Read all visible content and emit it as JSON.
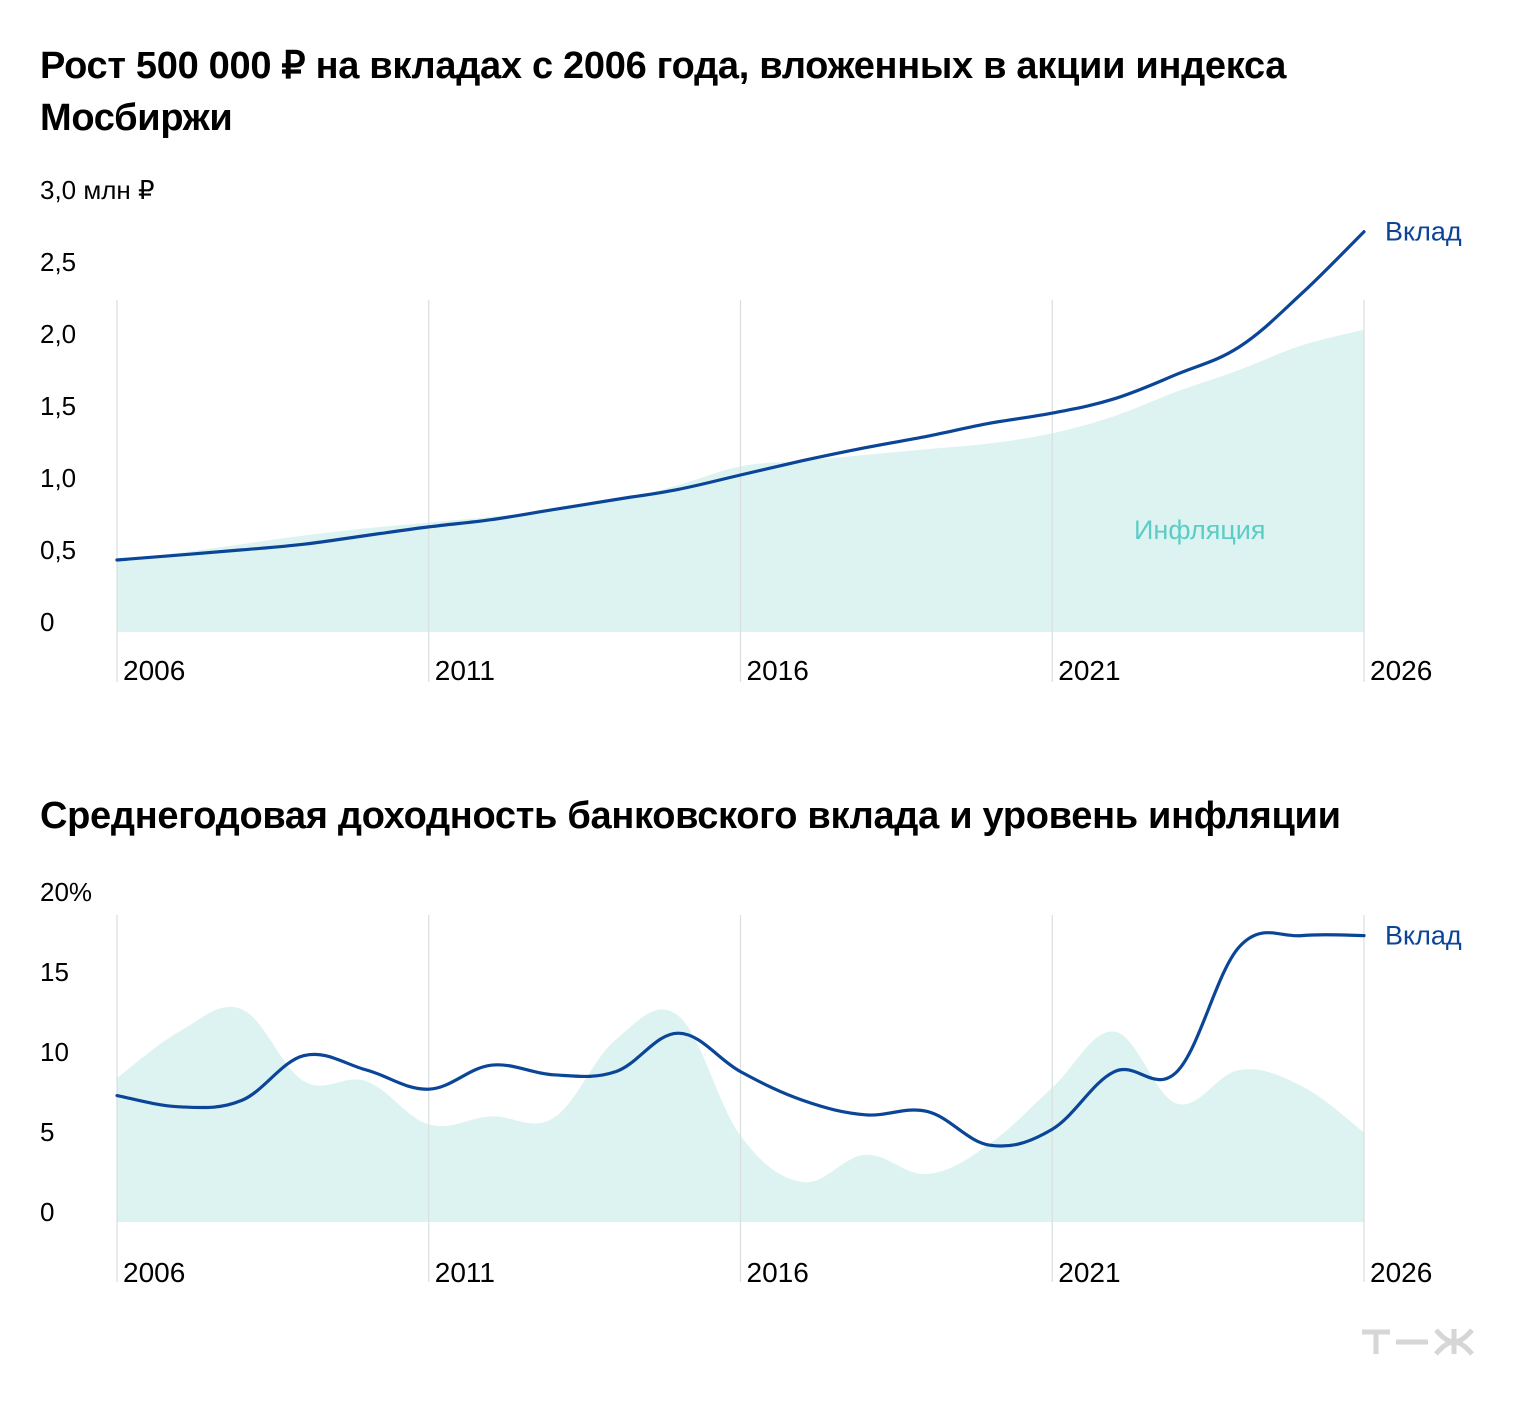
{
  "colors": {
    "deposit": "#0a4597",
    "inflation_fill": "#ddf3f1",
    "inflation_label": "#5ccdc6",
    "grid": "#d9dedf",
    "logo": "#d6d6d6"
  },
  "logo_icon": "tzh-logo-icon",
  "chart_data": [
    {
      "type": "area",
      "title": "Рост 500 000 ₽ на вкладах с 2006 года, вложенных в акции индекса Мосбиржи",
      "ylim": [
        0,
        3.0
      ],
      "y_ticks": [
        {
          "value": 0,
          "label": "0"
        },
        {
          "value": 0.5,
          "label": "0,5"
        },
        {
          "value": 1.0,
          "label": "1,0"
        },
        {
          "value": 1.5,
          "label": "1,5"
        },
        {
          "value": 2.0,
          "label": "2,0"
        },
        {
          "value": 2.5,
          "label": "2,5"
        },
        {
          "value": 3.0,
          "label": "3,0 млн ₽"
        }
      ],
      "x_range": [
        2006,
        2026
      ],
      "x_ticks": [
        "2006",
        "2011",
        "2016",
        "2021",
        "2026"
      ],
      "grid": "vertical",
      "series": [
        {
          "name": "Вклад",
          "style": "line",
          "x": [
            2006,
            2008,
            2009,
            2010,
            2011,
            2012,
            2013,
            2014,
            2015,
            2016,
            2017,
            2018,
            2019,
            2020,
            2021,
            2022,
            2023,
            2024,
            2025,
            2026
          ],
          "values": [
            0.5,
            0.57,
            0.61,
            0.67,
            0.73,
            0.78,
            0.85,
            0.92,
            0.99,
            1.09,
            1.19,
            1.28,
            1.36,
            1.45,
            1.52,
            1.62,
            1.79,
            1.98,
            2.35,
            2.78
          ]
        },
        {
          "name": "Инфляция",
          "style": "area",
          "x": [
            2006,
            2007,
            2008,
            2009,
            2010,
            2011,
            2012,
            2013,
            2014,
            2015,
            2016,
            2017,
            2018,
            2019,
            2020,
            2021,
            2022,
            2023,
            2024,
            2025,
            2026
          ],
          "values": [
            0.5,
            0.55,
            0.61,
            0.67,
            0.72,
            0.76,
            0.8,
            0.85,
            0.91,
            1.02,
            1.15,
            1.19,
            1.23,
            1.27,
            1.31,
            1.38,
            1.5,
            1.67,
            1.82,
            1.99,
            2.1
          ]
        }
      ]
    },
    {
      "type": "area",
      "title": "Среднегодовая доходность банковского вклада и уровень инфляции",
      "ylim": [
        0,
        20
      ],
      "y_ticks": [
        {
          "value": 0,
          "label": "0"
        },
        {
          "value": 5,
          "label": "5"
        },
        {
          "value": 10,
          "label": "10"
        },
        {
          "value": 15,
          "label": "15"
        },
        {
          "value": 20,
          "label": "20%"
        }
      ],
      "x_range": [
        2006,
        2026
      ],
      "x_ticks": [
        "2006",
        "2011",
        "2016",
        "2021",
        "2026"
      ],
      "grid": "vertical",
      "series": [
        {
          "name": "Вклад",
          "style": "line",
          "x": [
            2006,
            2007,
            2008,
            2009,
            2010,
            2011,
            2012,
            2013,
            2014,
            2015,
            2016,
            2017,
            2018,
            2019,
            2020,
            2021,
            2022,
            2023,
            2024,
            2025,
            2026
          ],
          "values": [
            7.9,
            7.2,
            7.6,
            10.4,
            9.5,
            8.3,
            9.8,
            9.2,
            9.4,
            11.8,
            9.4,
            7.6,
            6.7,
            6.9,
            4.8,
            5.8,
            9.4,
            9.4,
            17.2,
            17.9,
            17.9
          ]
        },
        {
          "name": "Инфляция",
          "style": "area",
          "x": [
            2006,
            2007,
            2008,
            2009,
            2010,
            2011,
            2012,
            2013,
            2014,
            2015,
            2016,
            2017,
            2018,
            2019,
            2020,
            2021,
            2022,
            2023,
            2024,
            2025,
            2026
          ],
          "values": [
            9.0,
            11.9,
            13.3,
            8.8,
            8.8,
            6.1,
            6.6,
            6.5,
            11.4,
            12.9,
            5.4,
            2.5,
            4.2,
            3.0,
            4.9,
            8.4,
            11.9,
            7.4,
            9.5,
            8.5,
            5.6
          ]
        }
      ]
    }
  ]
}
